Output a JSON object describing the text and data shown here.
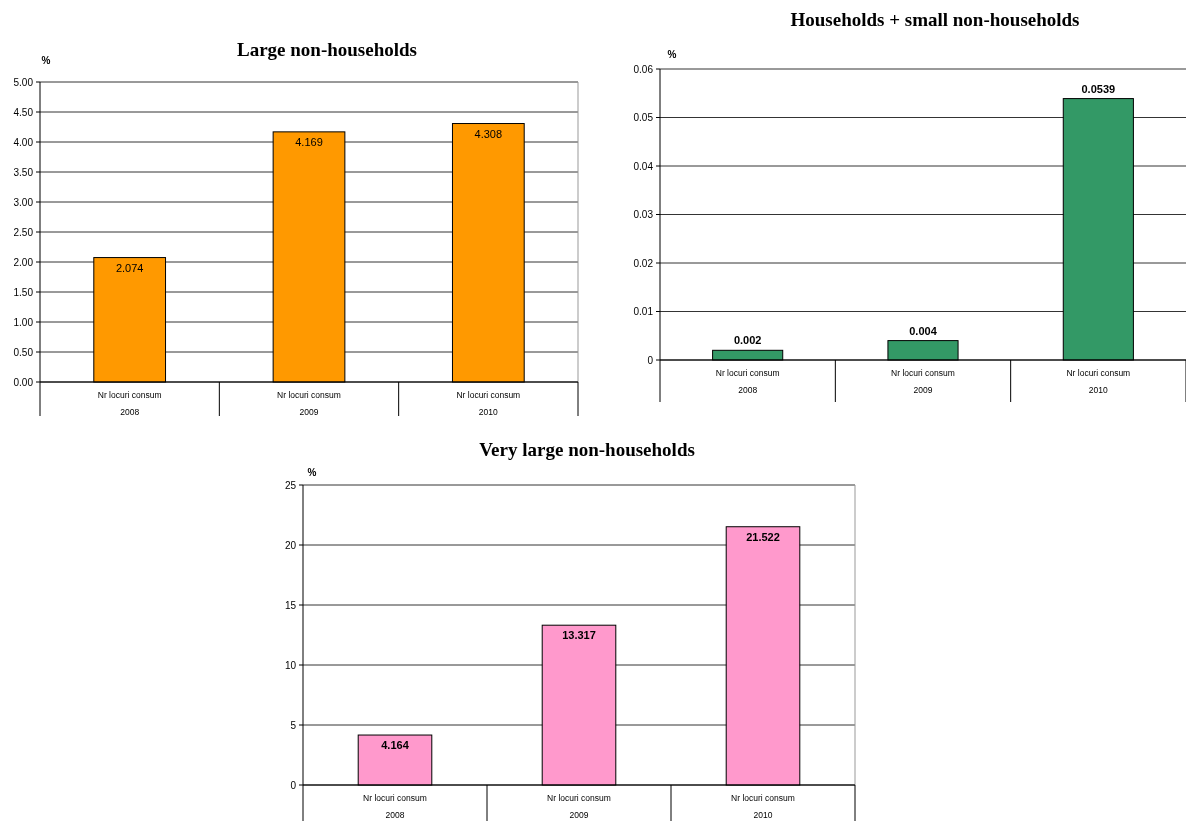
{
  "chart_data": [
    {
      "type": "bar",
      "title": "Large non-households",
      "ylabel": "%",
      "categories": [
        "Nr locuri consum\n2008",
        "Nr locuri consum\n2009",
        "Nr locuri consum\n2010"
      ],
      "values": [
        2.074,
        4.169,
        4.308
      ],
      "color": "#ff9900",
      "ylim": [
        0,
        5
      ],
      "yticks": [
        {
          "value": 0,
          "label": "0.00"
        },
        {
          "value": 0.5,
          "label": "0.50"
        },
        {
          "value": 1,
          "label": "1.00"
        },
        {
          "value": 1.5,
          "label": "1.50"
        },
        {
          "value": 2,
          "label": "2.00"
        },
        {
          "value": 2.5,
          "label": "2.50"
        },
        {
          "value": 3,
          "label": "3.00"
        },
        {
          "value": 3.5,
          "label": "3.50"
        },
        {
          "value": 4,
          "label": "4.00"
        },
        {
          "value": 4.5,
          "label": "4.50"
        },
        {
          "value": 5,
          "label": "5.00"
        }
      ],
      "grid": "y",
      "data_labels": true
    },
    {
      "type": "bar",
      "title": "Households + small non-households",
      "ylabel": "%",
      "categories": [
        "Nr locuri consum\n2008",
        "Nr locuri consum\n2009",
        "Nr locuri consum\n2010"
      ],
      "values": [
        0.002,
        0.004,
        0.0539
      ],
      "color": "#339966",
      "ylim": [
        0,
        0.06
      ],
      "yticks": [
        0,
        0.01,
        0.02,
        0.03,
        0.04,
        0.05,
        0.06
      ],
      "grid": "y",
      "data_labels": true
    },
    {
      "type": "bar",
      "title": "Very large non-households",
      "ylabel": "%",
      "categories": [
        "Nr locuri consum\n2008",
        "Nr locuri consum\n2009",
        "Nr locuri consum\n2010"
      ],
      "values": [
        4.164,
        13.317,
        21.522
      ],
      "color": "#ff99cc",
      "ylim": [
        0,
        25
      ],
      "yticks": [
        0,
        5,
        10,
        15,
        20,
        25
      ],
      "grid": "y",
      "data_labels": true
    }
  ]
}
